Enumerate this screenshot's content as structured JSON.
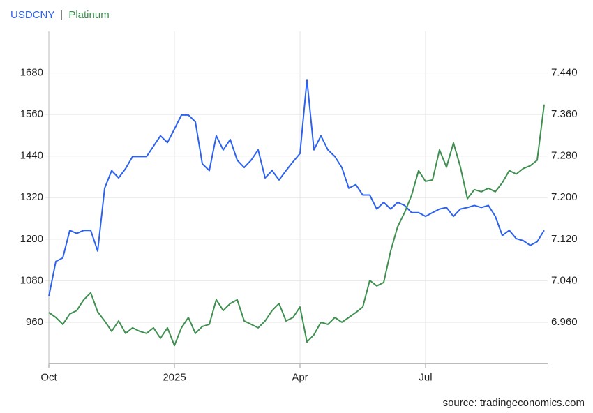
{
  "chart_data": {
    "type": "line",
    "title_separator": "|",
    "source": "source: tradingeconomics.com",
    "categories": [
      "Oct",
      null,
      null,
      null,
      null,
      null,
      null,
      null,
      null,
      null,
      null,
      null,
      null,
      null,
      null,
      null,
      null,
      null,
      "2025",
      null,
      null,
      null,
      null,
      null,
      null,
      null,
      null,
      null,
      null,
      null,
      null,
      null,
      null,
      null,
      null,
      null,
      "Apr",
      null,
      null,
      null,
      null,
      null,
      null,
      null,
      null,
      null,
      null,
      null,
      null,
      null,
      null,
      null,
      null,
      null,
      "Jul",
      null,
      null,
      null,
      null,
      null,
      null,
      null,
      null,
      null,
      null,
      null,
      null,
      null,
      null,
      null,
      null,
      null
    ],
    "series": [
      {
        "name": "USDCNY",
        "color": "#2c62ee",
        "axis": "y2",
        "values": [
          7.01,
          7.077,
          7.084,
          7.137,
          7.131,
          7.137,
          7.137,
          7.097,
          7.218,
          7.252,
          7.238,
          7.256,
          7.279,
          7.279,
          7.279,
          7.299,
          7.319,
          7.306,
          7.332,
          7.359,
          7.359,
          7.346,
          7.265,
          7.252,
          7.319,
          7.292,
          7.312,
          7.272,
          7.258,
          7.272,
          7.292,
          7.238,
          7.252,
          7.234,
          7.252,
          7.269,
          7.285,
          7.427,
          7.292,
          7.319,
          7.292,
          7.279,
          7.258,
          7.218,
          7.225,
          7.205,
          7.205,
          7.178,
          7.191,
          7.178,
          7.191,
          7.185,
          7.171,
          7.171,
          7.164,
          7.171,
          7.178,
          7.181,
          7.164,
          7.178,
          7.181,
          7.185,
          7.181,
          7.185,
          7.164,
          7.127,
          7.137,
          7.121,
          7.117,
          7.108,
          7.115,
          7.137
        ]
      },
      {
        "name": "Platinum",
        "color": "#3e8f50",
        "values": [
          988,
          974,
          954,
          984,
          994,
          1025,
          1045,
          990,
          964,
          934,
          964,
          928,
          944,
          934,
          928,
          944,
          914,
          944,
          893,
          944,
          974,
          928,
          948,
          954,
          1025,
          994,
          1014,
          1025,
          964,
          954,
          944,
          964,
          994,
          1014,
          964,
          974,
          1004,
          903,
          924,
          960,
          954,
          974,
          960,
          974,
          988,
          1004,
          1081,
          1065,
          1075,
          1166,
          1236,
          1277,
          1327,
          1398,
          1367,
          1371,
          1458,
          1408,
          1478,
          1408,
          1317,
          1343,
          1337,
          1347,
          1337,
          1363,
          1398,
          1388,
          1404,
          1412,
          1428,
          1589
        ]
      }
    ],
    "ylim": [
      840,
      1800
    ],
    "yticks": [
      960,
      1080,
      1200,
      1320,
      1440,
      1560,
      1680
    ],
    "y2lim": [
      6.88,
      7.52
    ],
    "y2ticks": [
      {
        "value": 6.96,
        "label": "6.960"
      },
      {
        "value": 7.04,
        "label": "7.040"
      },
      {
        "value": 7.12,
        "label": "7.120"
      },
      {
        "value": 7.2,
        "label": "7.200"
      },
      {
        "value": 7.28,
        "label": "7.280"
      },
      {
        "value": 7.36,
        "label": "7.360"
      },
      {
        "value": 7.44,
        "label": "7.440"
      }
    ],
    "grid": true
  }
}
